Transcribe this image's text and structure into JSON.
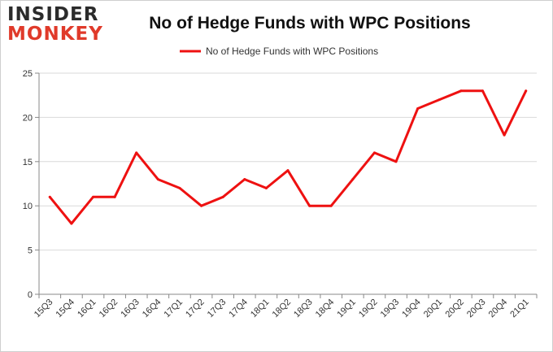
{
  "logo": {
    "top": "INSIDER",
    "bottom": "MONKEY"
  },
  "chart_data": {
    "type": "line",
    "title": "No of Hedge Funds with WPC Positions",
    "categories": [
      "15Q3",
      "15Q4",
      "16Q1",
      "16Q2",
      "16Q3",
      "16Q4",
      "17Q1",
      "17Q2",
      "17Q3",
      "17Q4",
      "18Q1",
      "18Q2",
      "18Q3",
      "18Q4",
      "19Q1",
      "19Q2",
      "19Q3",
      "19Q4",
      "20Q1",
      "20Q2",
      "20Q3",
      "20Q4",
      "21Q1"
    ],
    "series": [
      {
        "name": "No of Hedge Funds with WPC Positions",
        "color": "#ee1111",
        "values": [
          11,
          8,
          11,
          11,
          16,
          13,
          12,
          10,
          11,
          13,
          12,
          14,
          10,
          10,
          13,
          16,
          15,
          21,
          22,
          23,
          23,
          18,
          23
        ]
      }
    ],
    "ylim": [
      0,
      25
    ],
    "yticks": [
      0,
      5,
      10,
      15,
      20,
      25
    ],
    "grid": true,
    "legend": "top-center",
    "xlabel": "",
    "ylabel": ""
  }
}
